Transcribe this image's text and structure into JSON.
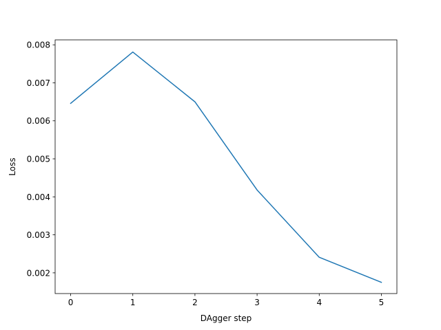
{
  "chart_data": {
    "type": "line",
    "title": "",
    "xlabel": "DAgger step",
    "ylabel": "Loss",
    "xlim": [
      -0.25,
      5.25
    ],
    "ylim": [
      0.001455,
      0.00813
    ],
    "x_ticks": [
      0,
      1,
      2,
      3,
      4,
      5
    ],
    "x_tick_labels": [
      "0",
      "1",
      "2",
      "3",
      "4",
      "5"
    ],
    "y_ticks": [
      0.002,
      0.003,
      0.004,
      0.005,
      0.006,
      0.007,
      0.008
    ],
    "y_tick_labels": [
      "0.002",
      "0.003",
      "0.004",
      "0.005",
      "0.006",
      "0.007",
      "0.008"
    ],
    "grid": false,
    "legend": "none",
    "series": [
      {
        "color": "#1f77b4",
        "x": [
          0,
          1,
          2,
          3,
          4,
          5
        ],
        "y": [
          0.00646,
          0.00781,
          0.0065,
          0.00418,
          0.00241,
          0.00175
        ]
      }
    ]
  }
}
